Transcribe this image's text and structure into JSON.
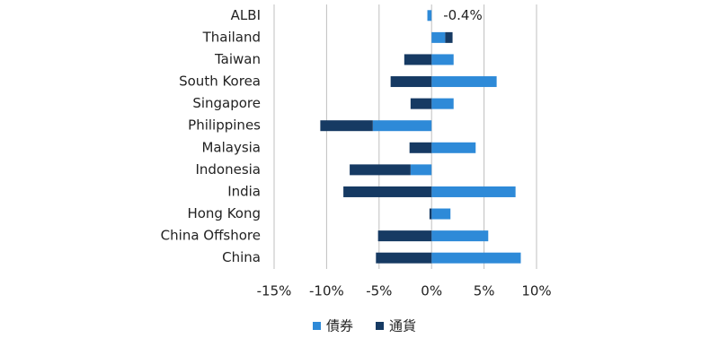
{
  "chart_data": {
    "type": "hbar-stacked",
    "categories": [
      "ALBI",
      "Thailand",
      "Taiwan",
      "South Korea",
      "Singapore",
      "Philippines",
      "Malaysia",
      "Indonesia",
      "India",
      "Hong Kong",
      "China Offshore",
      "China"
    ],
    "series": [
      {
        "name": "債券",
        "color": "#2e8ad8",
        "values": [
          -0.4,
          1.3,
          2.1,
          6.2,
          2.1,
          -5.6,
          4.2,
          -2.0,
          8.0,
          1.8,
          5.4,
          8.5
        ],
        "value_labels": [
          "-0.4%",
          null,
          null,
          null,
          null,
          null,
          null,
          null,
          null,
          null,
          null,
          null
        ]
      },
      {
        "name": "通貨",
        "color": "#163a63",
        "values": [
          0,
          0.7,
          -2.6,
          -3.9,
          -2.0,
          -5.0,
          -2.1,
          -5.8,
          -8.4,
          -0.2,
          -5.1,
          -5.3
        ]
      }
    ],
    "xlim": [
      -15,
      10
    ],
    "xticks": [
      {
        "value": -15,
        "label": "-15%"
      },
      {
        "value": -10,
        "label": "-10%"
      },
      {
        "value": -5,
        "label": "-5%"
      },
      {
        "value": 0,
        "label": "0%"
      },
      {
        "value": 5,
        "label": "5%"
      },
      {
        "value": 10,
        "label": "10%"
      }
    ],
    "grid": true
  }
}
